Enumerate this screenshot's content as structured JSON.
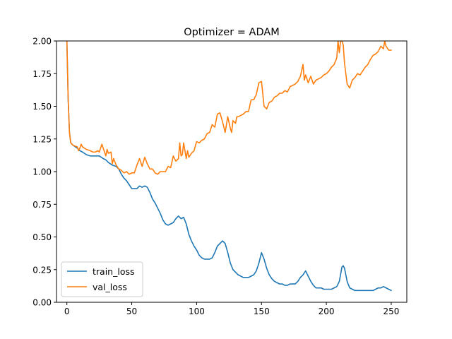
{
  "chart_data": {
    "type": "line",
    "title": "Optimizer = ADAM",
    "xlabel": "",
    "ylabel": "",
    "xlim": [
      -8,
      262
    ],
    "ylim": [
      0,
      2.0
    ],
    "x_ticks": [
      0,
      50,
      100,
      150,
      200,
      250
    ],
    "x_tick_labels": [
      "0",
      "50",
      "100",
      "150",
      "200",
      "250"
    ],
    "y_ticks": [
      0,
      0.25,
      0.5,
      0.75,
      1.0,
      1.25,
      1.5,
      1.75,
      2.0
    ],
    "y_tick_labels": [
      "0.00",
      "0.25",
      "0.50",
      "0.75",
      "1.00",
      "1.25",
      "1.50",
      "1.75",
      "2.00"
    ],
    "grid": false,
    "legend_position": "lower-left",
    "series": [
      {
        "name": "train_loss",
        "color": "#1f77b4",
        "x": [
          0,
          1,
          2,
          3,
          5,
          8,
          10,
          12,
          15,
          18,
          20,
          22,
          25,
          28,
          30,
          32,
          35,
          38,
          40,
          42,
          44,
          46,
          48,
          50,
          52,
          54,
          56,
          58,
          60,
          62,
          64,
          66,
          68,
          70,
          72,
          74,
          76,
          78,
          80,
          82,
          84,
          86,
          88,
          90,
          92,
          94,
          96,
          98,
          100,
          102,
          104,
          106,
          108,
          110,
          112,
          114,
          116,
          118,
          120,
          122,
          124,
          126,
          128,
          130,
          132,
          134,
          136,
          138,
          140,
          142,
          144,
          146,
          148,
          150,
          152,
          154,
          156,
          158,
          160,
          162,
          164,
          166,
          168,
          170,
          172,
          174,
          176,
          178,
          180,
          182,
          184,
          186,
          188,
          190,
          192,
          194,
          196,
          198,
          200,
          202,
          204,
          206,
          208,
          210,
          212,
          213,
          214,
          216,
          218,
          220,
          222,
          224,
          226,
          228,
          230,
          232,
          234,
          236,
          238,
          240,
          242,
          244,
          246,
          248,
          250
        ],
        "values": [
          2.0,
          1.55,
          1.3,
          1.22,
          1.2,
          1.18,
          1.16,
          1.15,
          1.13,
          1.12,
          1.12,
          1.12,
          1.12,
          1.1,
          1.09,
          1.07,
          1.05,
          1.04,
          1.02,
          0.98,
          0.95,
          0.93,
          0.9,
          0.87,
          0.87,
          0.87,
          0.89,
          0.88,
          0.89,
          0.88,
          0.84,
          0.79,
          0.76,
          0.72,
          0.68,
          0.63,
          0.6,
          0.59,
          0.6,
          0.61,
          0.64,
          0.66,
          0.64,
          0.65,
          0.6,
          0.52,
          0.47,
          0.43,
          0.4,
          0.36,
          0.34,
          0.33,
          0.33,
          0.33,
          0.34,
          0.38,
          0.43,
          0.45,
          0.47,
          0.45,
          0.38,
          0.3,
          0.25,
          0.23,
          0.21,
          0.2,
          0.19,
          0.19,
          0.19,
          0.2,
          0.21,
          0.24,
          0.3,
          0.38,
          0.33,
          0.26,
          0.21,
          0.18,
          0.16,
          0.15,
          0.14,
          0.14,
          0.13,
          0.13,
          0.14,
          0.14,
          0.14,
          0.16,
          0.19,
          0.21,
          0.24,
          0.2,
          0.16,
          0.13,
          0.11,
          0.11,
          0.11,
          0.1,
          0.1,
          0.1,
          0.1,
          0.11,
          0.12,
          0.16,
          0.27,
          0.28,
          0.26,
          0.16,
          0.11,
          0.1,
          0.09,
          0.09,
          0.09,
          0.09,
          0.09,
          0.09,
          0.09,
          0.09,
          0.1,
          0.11,
          0.11,
          0.12,
          0.11,
          0.1,
          0.09
        ]
      },
      {
        "name": "val_loss",
        "color": "#ff7f0e",
        "x": [
          0,
          1,
          2,
          3,
          5,
          8,
          9,
          10,
          11,
          12,
          15,
          18,
          20,
          22,
          24,
          25,
          26,
          27,
          28,
          30,
          31,
          32,
          34,
          35,
          36,
          38,
          40,
          42,
          44,
          46,
          48,
          50,
          52,
          54,
          56,
          58,
          60,
          62,
          64,
          66,
          68,
          70,
          72,
          74,
          76,
          78,
          80,
          82,
          84,
          86,
          87,
          88,
          89,
          90,
          92,
          93,
          94,
          96,
          98,
          100,
          102,
          104,
          106,
          108,
          110,
          112,
          114,
          116,
          118,
          120,
          122,
          124,
          126,
          127,
          128,
          130,
          131,
          132,
          134,
          136,
          138,
          140,
          142,
          144,
          146,
          148,
          150,
          152,
          154,
          156,
          158,
          160,
          162,
          164,
          166,
          168,
          170,
          172,
          174,
          176,
          178,
          180,
          182,
          183,
          184,
          186,
          188,
          190,
          192,
          194,
          196,
          198,
          200,
          202,
          204,
          206,
          208,
          209,
          210,
          211,
          212,
          213,
          214,
          216,
          218,
          220,
          222,
          224,
          226,
          228,
          230,
          232,
          234,
          236,
          238,
          240,
          242,
          244,
          245,
          246,
          248,
          250
        ],
        "values": [
          2.0,
          1.55,
          1.3,
          1.22,
          1.2,
          1.19,
          1.16,
          1.18,
          1.21,
          1.19,
          1.17,
          1.16,
          1.15,
          1.15,
          1.16,
          1.15,
          1.18,
          1.21,
          1.18,
          1.12,
          1.17,
          1.14,
          1.15,
          1.06,
          1.1,
          1.05,
          1.02,
          1.01,
          0.99,
          1.0,
          0.98,
          0.99,
          0.99,
          1.05,
          1.1,
          1.04,
          1.11,
          1.06,
          1.02,
          1.02,
          0.99,
          0.98,
          1.0,
          1.0,
          1.0,
          1.04,
          1.03,
          1.12,
          1.08,
          1.1,
          1.22,
          1.12,
          1.13,
          1.22,
          1.1,
          1.16,
          1.11,
          1.14,
          1.16,
          1.23,
          1.22,
          1.24,
          1.25,
          1.29,
          1.3,
          1.36,
          1.34,
          1.44,
          1.45,
          1.38,
          1.3,
          1.42,
          1.33,
          1.3,
          1.39,
          1.37,
          1.42,
          1.42,
          1.43,
          1.44,
          1.46,
          1.46,
          1.55,
          1.55,
          1.59,
          1.68,
          1.69,
          1.5,
          1.48,
          1.53,
          1.54,
          1.57,
          1.58,
          1.6,
          1.6,
          1.62,
          1.61,
          1.65,
          1.66,
          1.67,
          1.69,
          1.73,
          1.82,
          1.7,
          1.74,
          1.68,
          1.73,
          1.67,
          1.7,
          1.71,
          1.72,
          1.74,
          1.75,
          1.77,
          1.8,
          1.82,
          1.87,
          2.0,
          1.91,
          2.0,
          2.0,
          1.97,
          1.83,
          1.67,
          1.64,
          1.7,
          1.72,
          1.75,
          1.74,
          1.77,
          1.8,
          1.82,
          1.86,
          1.89,
          1.9,
          1.92,
          1.96,
          1.94,
          2.0,
          1.96,
          1.93,
          1.93
        ]
      }
    ]
  }
}
